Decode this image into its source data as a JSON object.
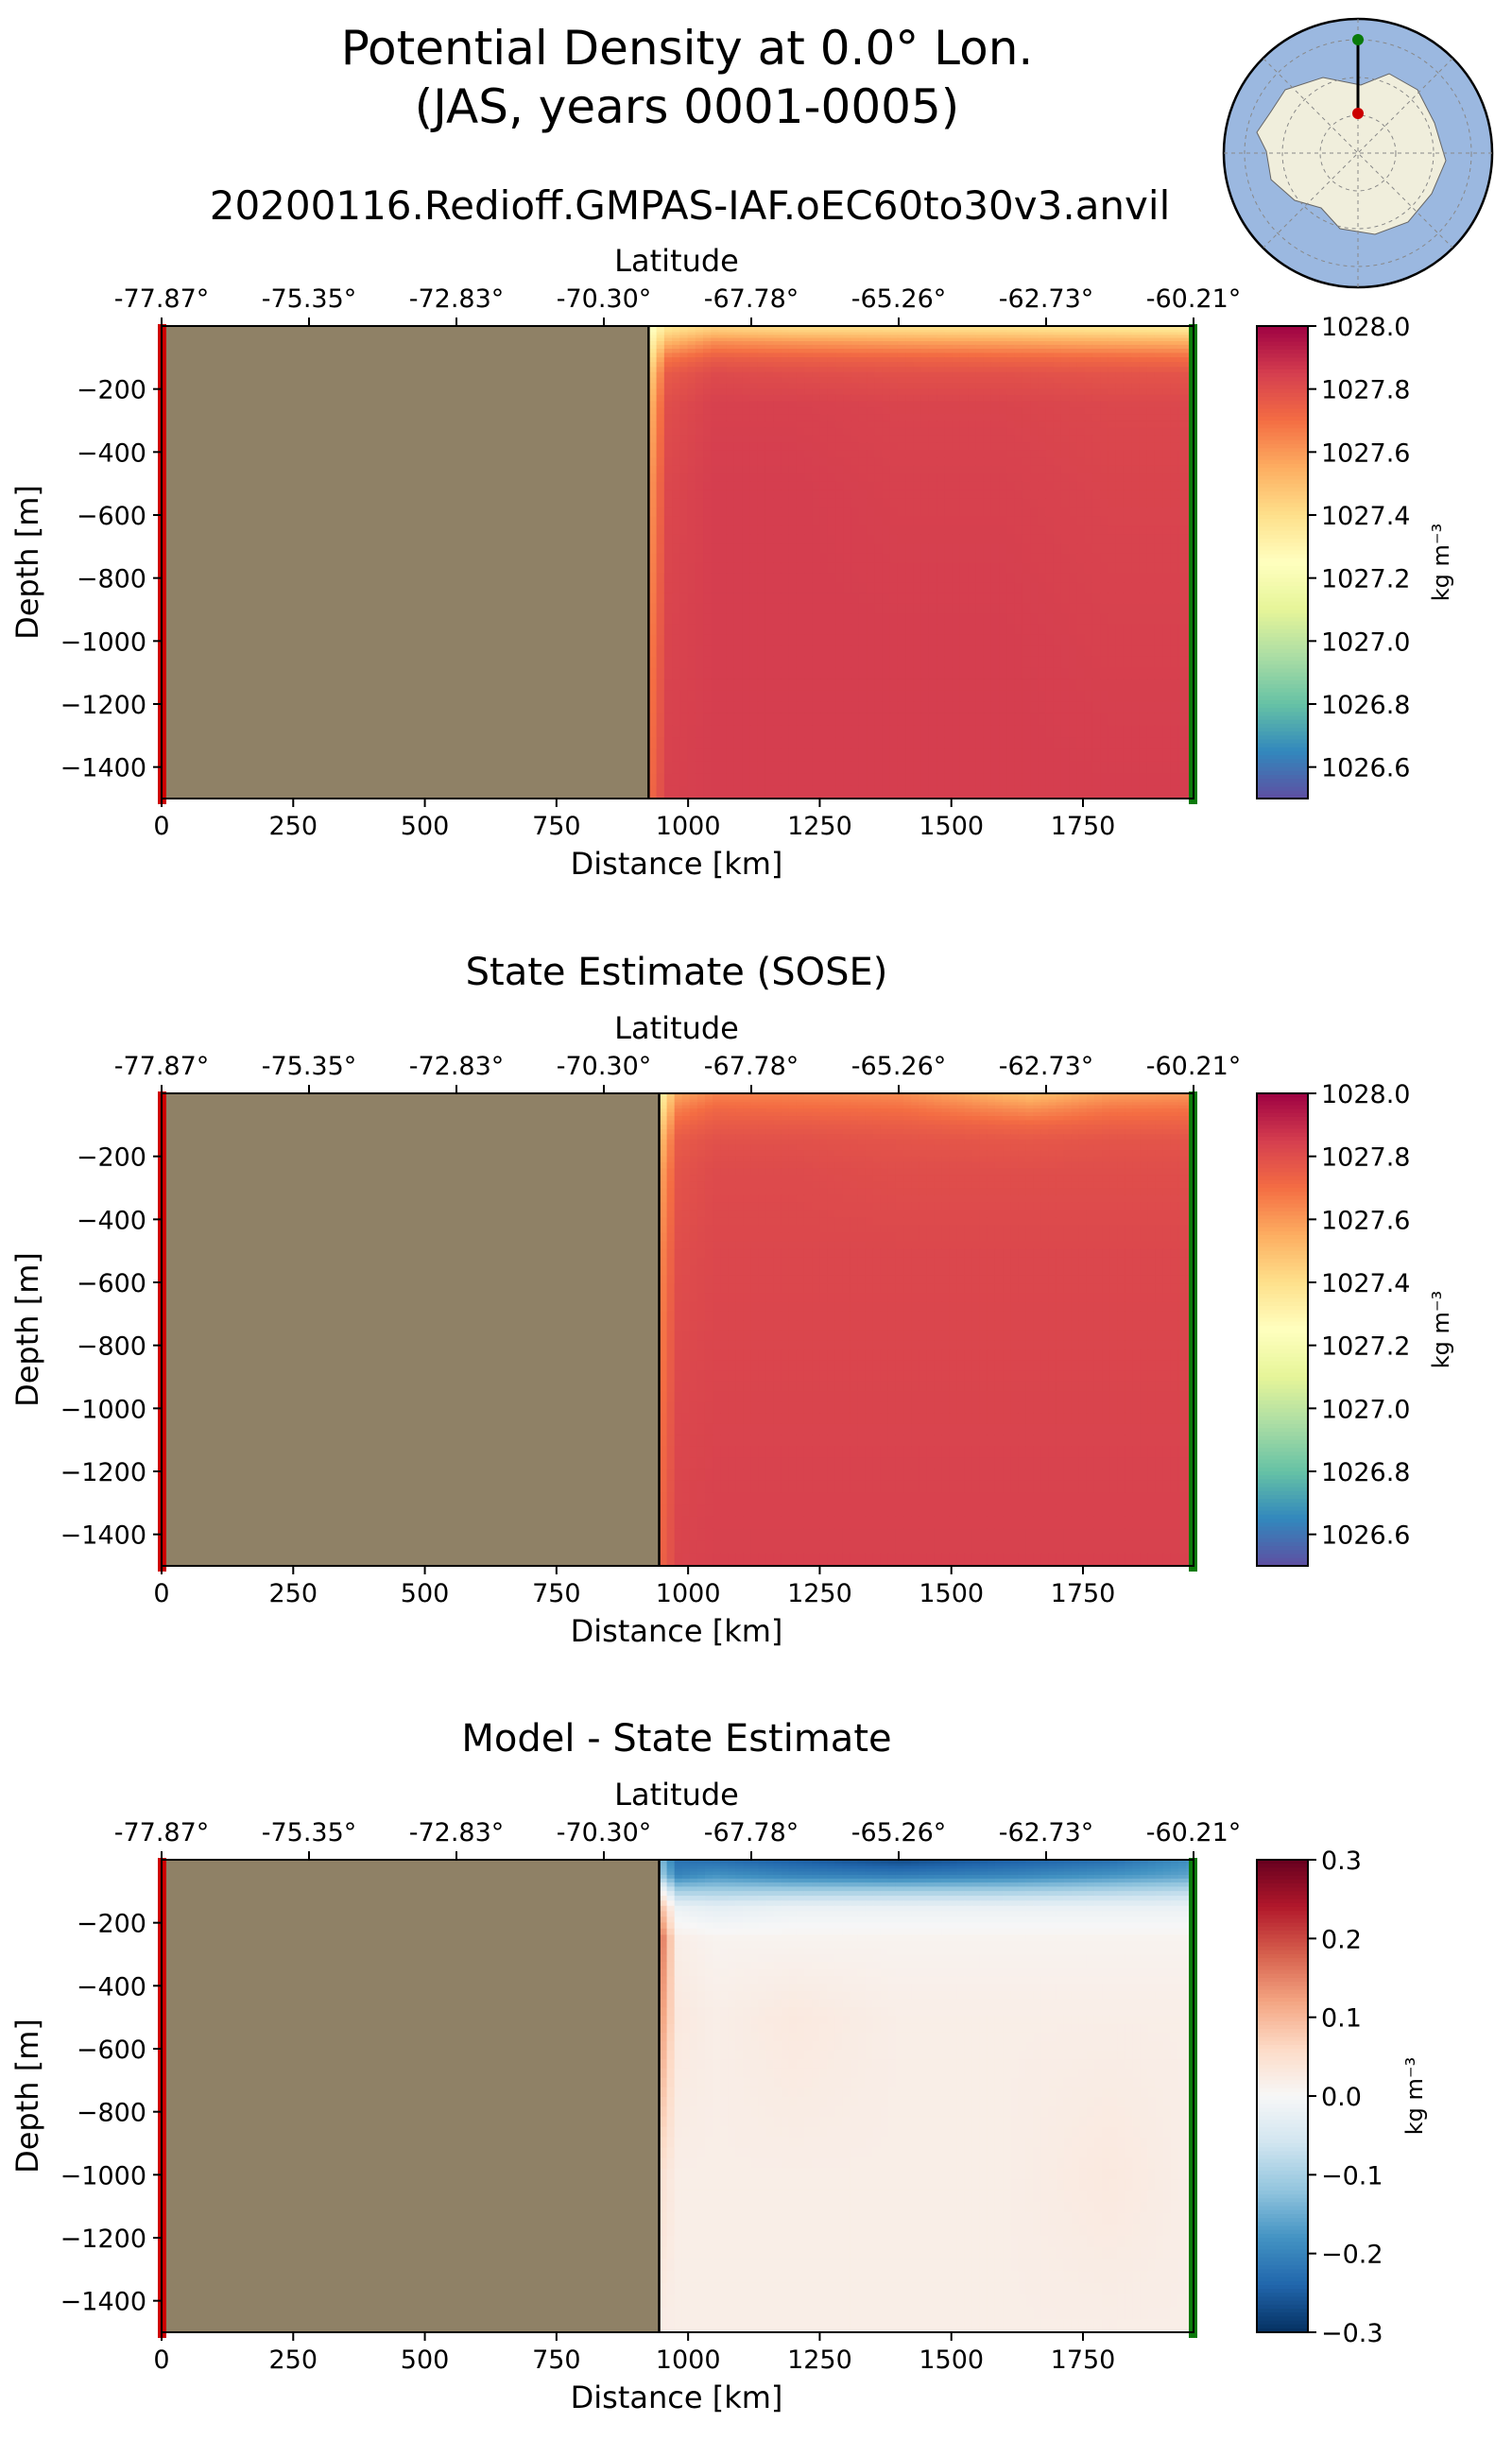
{
  "figure": {
    "title_line1": "Potential Density at 0.0° Lon.",
    "title_line2": "(JAS, years 0001-0005)",
    "run_name": "20200116.Redioff.GMPAS-IAF.oEC60to30v3.anvil"
  },
  "colors": {
    "land": "#8f8166",
    "start_marker": "#cc0000",
    "end_marker": "#0a7a0a",
    "map_ocean": "#9bb8e0",
    "map_land": "#f0eedc",
    "frame": "#000000"
  },
  "chart_data": [
    {
      "type": "heatmap",
      "title": "",
      "xlabel": "Distance [km]",
      "ylabel": "Depth [m]",
      "top_axis_label": "Latitude",
      "xlim": [
        0,
        1960
      ],
      "ylim": [
        -1500,
        0
      ],
      "x_ticks": [
        0,
        250,
        500,
        750,
        1000,
        1250,
        1500,
        1750
      ],
      "x_tick_labels": [
        "0",
        "250",
        "500",
        "750",
        "1000",
        "1250",
        "1500",
        "1750"
      ],
      "y_ticks": [
        -200,
        -400,
        -600,
        -800,
        -1000,
        -1200,
        -1400
      ],
      "y_tick_labels": [
        "−200",
        "−400",
        "−600",
        "−800",
        "−1000",
        "−1200",
        "−1400"
      ],
      "lat_ticks_km": [
        0,
        280,
        560,
        840,
        1120,
        1400,
        1680,
        1960
      ],
      "lat_tick_labels": [
        "-77.87°",
        "-75.35°",
        "-72.83°",
        "-70.30°",
        "-67.78°",
        "-65.26°",
        "-62.73°",
        "-60.21°"
      ],
      "shelf_edge_km": 925,
      "colormap": "Spectral_r",
      "vmin": 1026.5,
      "vmax": 1028.0,
      "colorbar_ticks": [
        1028.0,
        1027.8,
        1027.6,
        1027.4,
        1027.2,
        1027.0,
        1026.8,
        1026.6
      ],
      "colorbar_tick_labels": [
        "1028.0",
        "1027.8",
        "1027.6",
        "1027.4",
        "1027.2",
        "1027.0",
        "1026.8",
        "1026.6"
      ],
      "colorbar_label": "kg m⁻³",
      "field_depths_m": [
        -10,
        -50,
        -100,
        -150,
        -250,
        -500,
        -1000,
        -1500
      ],
      "field_x_km": [
        925,
        960,
        1050,
        1200,
        1400,
        1600,
        1800,
        1960
      ],
      "field_values": [
        [
          1027.22,
          1027.38,
          1027.45,
          1027.42,
          1027.41,
          1027.4,
          1027.38,
          1027.36
        ],
        [
          1027.28,
          1027.52,
          1027.62,
          1027.6,
          1027.58,
          1027.57,
          1027.55,
          1027.54
        ],
        [
          1027.35,
          1027.68,
          1027.75,
          1027.74,
          1027.73,
          1027.72,
          1027.71,
          1027.7
        ],
        [
          1027.42,
          1027.76,
          1027.81,
          1027.8,
          1027.79,
          1027.79,
          1027.78,
          1027.78
        ],
        [
          1027.5,
          1027.8,
          1027.84,
          1027.84,
          1027.83,
          1027.83,
          1027.82,
          1027.82
        ],
        [
          1027.58,
          1027.82,
          1027.85,
          1027.85,
          1027.84,
          1027.84,
          1027.83,
          1027.83
        ],
        [
          1027.65,
          1027.83,
          1027.85,
          1027.85,
          1027.85,
          1027.85,
          1027.84,
          1027.84
        ],
        [
          1027.7,
          1027.84,
          1027.85,
          1027.85,
          1027.85,
          1027.85,
          1027.85,
          1027.85
        ]
      ]
    },
    {
      "type": "heatmap",
      "title": "State Estimate (SOSE)",
      "xlabel": "Distance [km]",
      "ylabel": "Depth [m]",
      "top_axis_label": "Latitude",
      "xlim": [
        0,
        1960
      ],
      "ylim": [
        -1500,
        0
      ],
      "x_ticks": [
        0,
        250,
        500,
        750,
        1000,
        1250,
        1500,
        1750
      ],
      "x_tick_labels": [
        "0",
        "250",
        "500",
        "750",
        "1000",
        "1250",
        "1500",
        "1750"
      ],
      "y_ticks": [
        -200,
        -400,
        -600,
        -800,
        -1000,
        -1200,
        -1400
      ],
      "y_tick_labels": [
        "−200",
        "−400",
        "−600",
        "−800",
        "−1000",
        "−1200",
        "−1400"
      ],
      "lat_ticks_km": [
        0,
        280,
        560,
        840,
        1120,
        1400,
        1680,
        1960
      ],
      "lat_tick_labels": [
        "-77.87°",
        "-75.35°",
        "-72.83°",
        "-70.30°",
        "-67.78°",
        "-65.26°",
        "-62.73°",
        "-60.21°"
      ],
      "shelf_edge_km": 945,
      "colormap": "Spectral_r",
      "vmin": 1026.5,
      "vmax": 1028.0,
      "colorbar_ticks": [
        1028.0,
        1027.8,
        1027.6,
        1027.4,
        1027.2,
        1027.0,
        1026.8,
        1026.6
      ],
      "colorbar_tick_labels": [
        "1028.0",
        "1027.8",
        "1027.6",
        "1027.4",
        "1027.2",
        "1027.0",
        "1026.8",
        "1026.6"
      ],
      "colorbar_label": "kg m⁻³",
      "field_depths_m": [
        -10,
        -50,
        -100,
        -150,
        -250,
        -500,
        -1000,
        -1500
      ],
      "field_x_km": [
        945,
        980,
        1050,
        1200,
        1400,
        1650,
        1800,
        1960
      ],
      "field_values": [
        [
          1027.3,
          1027.58,
          1027.66,
          1027.66,
          1027.64,
          1027.52,
          1027.6,
          1027.62
        ],
        [
          1027.35,
          1027.66,
          1027.72,
          1027.71,
          1027.7,
          1027.62,
          1027.68,
          1027.69
        ],
        [
          1027.42,
          1027.72,
          1027.76,
          1027.76,
          1027.75,
          1027.72,
          1027.74,
          1027.74
        ],
        [
          1027.48,
          1027.76,
          1027.79,
          1027.79,
          1027.78,
          1027.77,
          1027.78,
          1027.78
        ],
        [
          1027.55,
          1027.78,
          1027.81,
          1027.81,
          1027.8,
          1027.8,
          1027.8,
          1027.8
        ],
        [
          1027.62,
          1027.8,
          1027.82,
          1027.82,
          1027.82,
          1027.82,
          1027.82,
          1027.82
        ],
        [
          1027.68,
          1027.82,
          1027.83,
          1027.83,
          1027.83,
          1027.83,
          1027.83,
          1027.83
        ],
        [
          1027.72,
          1027.83,
          1027.84,
          1027.84,
          1027.84,
          1027.84,
          1027.84,
          1027.84
        ]
      ]
    },
    {
      "type": "heatmap",
      "title": "Model - State Estimate",
      "xlabel": "Distance [km]",
      "ylabel": "Depth [m]",
      "top_axis_label": "Latitude",
      "xlim": [
        0,
        1960
      ],
      "ylim": [
        -1500,
        0
      ],
      "x_ticks": [
        0,
        250,
        500,
        750,
        1000,
        1250,
        1500,
        1750
      ],
      "x_tick_labels": [
        "0",
        "250",
        "500",
        "750",
        "1000",
        "1250",
        "1500",
        "1750"
      ],
      "y_ticks": [
        -200,
        -400,
        -600,
        -800,
        -1000,
        -1200,
        -1400
      ],
      "y_tick_labels": [
        "−200",
        "−400",
        "−600",
        "−800",
        "−1000",
        "−1200",
        "−1400"
      ],
      "lat_ticks_km": [
        0,
        280,
        560,
        840,
        1120,
        1400,
        1680,
        1960
      ],
      "lat_tick_labels": [
        "-77.87°",
        "-75.35°",
        "-72.83°",
        "-70.30°",
        "-67.78°",
        "-65.26°",
        "-62.73°",
        "-60.21°"
      ],
      "shelf_edge_km": 945,
      "colormap": "RdBu_r",
      "vmin": -0.3,
      "vmax": 0.3,
      "colorbar_ticks": [
        0.3,
        0.2,
        0.1,
        0.0,
        -0.1,
        -0.2,
        -0.3
      ],
      "colorbar_tick_labels": [
        "0.3",
        "0.2",
        "0.1",
        "0.0",
        "−0.1",
        "−0.2",
        "−0.3"
      ],
      "colorbar_label": "kg m⁻³",
      "field_depths_m": [
        -10,
        -50,
        -100,
        -150,
        -250,
        -500,
        -1000,
        -1500
      ],
      "field_x_km": [
        945,
        980,
        1050,
        1200,
        1400,
        1600,
        1800,
        1960
      ],
      "field_values": [
        [
          -0.12,
          -0.22,
          -0.22,
          -0.24,
          -0.26,
          -0.24,
          -0.22,
          -0.18
        ],
        [
          -0.1,
          -0.2,
          -0.18,
          -0.2,
          -0.21,
          -0.2,
          -0.18,
          -0.16
        ],
        [
          0.02,
          -0.1,
          -0.1,
          -0.1,
          -0.1,
          -0.1,
          -0.09,
          -0.08
        ],
        [
          0.1,
          -0.02,
          -0.03,
          -0.02,
          -0.02,
          -0.02,
          -0.02,
          -0.02
        ],
        [
          0.18,
          0.02,
          0.01,
          0.01,
          0.01,
          0.01,
          0.01,
          0.01
        ],
        [
          0.14,
          0.03,
          0.02,
          0.03,
          0.02,
          0.02,
          0.02,
          0.02
        ],
        [
          0.05,
          0.02,
          0.02,
          0.02,
          0.02,
          0.02,
          0.03,
          0.02
        ],
        [
          0.02,
          0.02,
          0.02,
          0.02,
          0.02,
          0.02,
          0.02,
          0.02
        ]
      ]
    }
  ]
}
